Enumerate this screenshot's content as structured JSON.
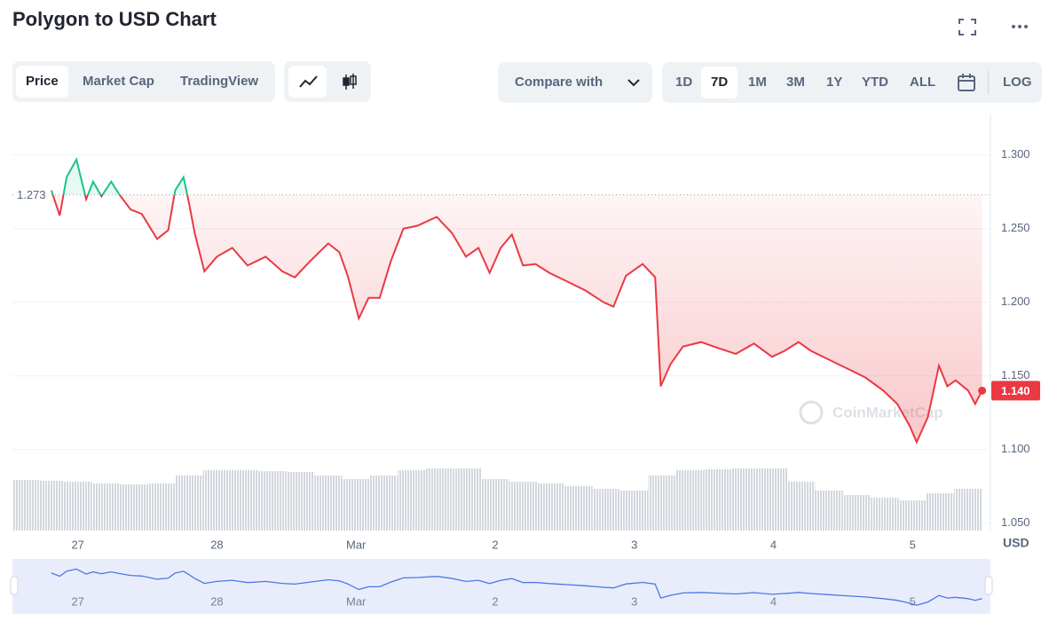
{
  "header": {
    "title": "Polygon to USD Chart"
  },
  "toolbar": {
    "tabs": [
      "Price",
      "Market Cap",
      "TradingView"
    ],
    "compare": "Compare with",
    "ranges": [
      "1D",
      "7D",
      "1M",
      "3M",
      "1Y",
      "YTD",
      "ALL"
    ],
    "scale": "LOG"
  },
  "chart_data": {
    "type": "line",
    "x": [
      -0.19,
      -0.13,
      -0.08,
      -0.01,
      0.06,
      0.11,
      0.17,
      0.24,
      0.3,
      0.38,
      0.46,
      0.57,
      0.65,
      0.7,
      0.76,
      0.8,
      0.84,
      0.91,
      1.0,
      1.11,
      1.22,
      1.35,
      1.47,
      1.56,
      1.67,
      1.8,
      1.88,
      1.94,
      2.02,
      2.09,
      2.17,
      2.25,
      2.34,
      2.44,
      2.58,
      2.69,
      2.79,
      2.88,
      2.96,
      3.04,
      3.12,
      3.2,
      3.29,
      3.39,
      3.52,
      3.65,
      3.78,
      3.85,
      3.94,
      4.06,
      4.15,
      4.19,
      4.26,
      4.35,
      4.48,
      4.6,
      4.73,
      4.86,
      4.99,
      5.08,
      5.18,
      5.27,
      5.4,
      5.53,
      5.66,
      5.79,
      5.89,
      5.98,
      6.03,
      6.11,
      6.19,
      6.25,
      6.31,
      6.4,
      6.45,
      6.5
    ],
    "series": [
      {
        "color": "#ea3943",
        "up_color": "#16c784",
        "values": [
          1.276,
          1.259,
          1.285,
          1.297,
          1.27,
          1.282,
          1.272,
          1.282,
          1.273,
          1.263,
          1.26,
          1.243,
          1.249,
          1.276,
          1.285,
          1.267,
          1.247,
          1.221,
          1.231,
          1.237,
          1.225,
          1.231,
          1.221,
          1.217,
          1.228,
          1.24,
          1.234,
          1.218,
          1.189,
          1.203,
          1.203,
          1.228,
          1.25,
          1.252,
          1.258,
          1.247,
          1.231,
          1.237,
          1.22,
          1.237,
          1.246,
          1.225,
          1.226,
          1.22,
          1.214,
          1.208,
          1.2,
          1.197,
          1.218,
          1.226,
          1.217,
          1.143,
          1.158,
          1.17,
          1.173,
          1.169,
          1.165,
          1.172,
          1.163,
          1.167,
          1.173,
          1.167,
          1.161,
          1.155,
          1.149,
          1.14,
          1.131,
          1.116,
          1.105,
          1.122,
          1.157,
          1.143,
          1.147,
          1.14,
          1.131,
          1.14
        ]
      }
    ],
    "volume": {
      "color": "#d3d7de",
      "x": [
        -0.4,
        -0.2,
        0,
        0.2,
        0.4,
        0.6,
        0.8,
        1.0,
        1.2,
        1.4,
        1.6,
        1.8,
        2.0,
        2.2,
        2.4,
        2.6,
        2.8,
        3.0,
        3.2,
        3.4,
        3.6,
        3.8,
        4.0,
        4.2,
        4.4,
        4.6,
        4.8,
        5.0,
        5.2,
        5.4,
        5.6,
        5.8,
        6.0,
        6.2,
        6.4
      ],
      "values": [
        57,
        56,
        55,
        53,
        52,
        53,
        62,
        68,
        68,
        67,
        66,
        62,
        58,
        62,
        68,
        70,
        70,
        58,
        55,
        53,
        50,
        47,
        45,
        62,
        68,
        69,
        70,
        70,
        55,
        45,
        40,
        37,
        34,
        42,
        47
      ]
    },
    "xlim": [
      -0.47,
      6.56
    ],
    "xticks": [
      {
        "value": 0,
        "label": "27"
      },
      {
        "value": 1,
        "label": "28"
      },
      {
        "value": 2,
        "label": "Mar"
      },
      {
        "value": 3,
        "label": "2"
      },
      {
        "value": 4,
        "label": "3"
      },
      {
        "value": 5,
        "label": "4"
      },
      {
        "value": 6,
        "label": "5"
      }
    ],
    "ylim": [
      1.045,
      1.327
    ],
    "yticks": [
      {
        "value": 1.05,
        "label": "1.050"
      },
      {
        "value": 1.1,
        "label": "1.100"
      },
      {
        "value": 1.15,
        "label": "1.150"
      },
      {
        "value": 1.2,
        "label": "1.200"
      },
      {
        "value": 1.25,
        "label": "1.250"
      },
      {
        "value": 1.3,
        "label": "1.300"
      }
    ],
    "y2lim": [
      0,
      100
    ],
    "grid": true,
    "reference": {
      "value": 1.273,
      "label": "1.273"
    },
    "last_price": {
      "value": 1.14,
      "label": "1.140"
    },
    "y_unit": "USD",
    "watermark": "CoinMarketCap",
    "navigator_color": "#4a78e6"
  }
}
